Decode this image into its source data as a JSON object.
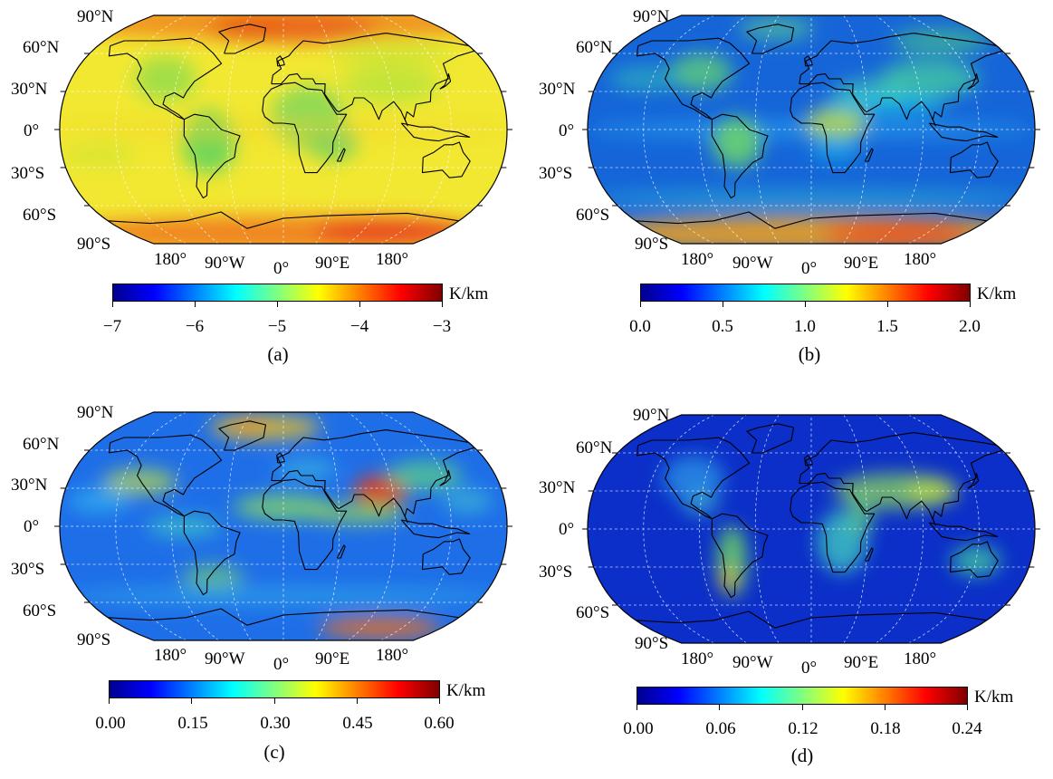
{
  "figure": {
    "panels": [
      {
        "id": "a",
        "label": "(a)",
        "lat_labels": [
          "90°N",
          "60°N",
          "30°N",
          "0°",
          "30°S",
          "60°S",
          "90°S"
        ],
        "lon_labels": [
          "180°",
          "90°W",
          "0°",
          "90°E",
          "180°"
        ],
        "colorbar": {
          "unit": "K/km",
          "min": -7,
          "max": -3,
          "ticks": [
            "−7",
            "−6",
            "−5",
            "−4",
            "−3"
          ],
          "colormap": "jet"
        },
        "background_color": "#f2e832"
      },
      {
        "id": "b",
        "label": "(b)",
        "lat_labels": [
          "90°N",
          "60°N",
          "30°N",
          "0°",
          "30°S",
          "60°S",
          "90°S"
        ],
        "lon_labels": [
          "180°",
          "90°W",
          "0°",
          "90°E",
          "180°"
        ],
        "colorbar": {
          "unit": "K/km",
          "min": 0.0,
          "max": 2.0,
          "ticks": [
            "0.0",
            "0.5",
            "1.0",
            "1.5",
            "2.0"
          ],
          "colormap": "jet"
        },
        "background_color": "#1565d8"
      },
      {
        "id": "c",
        "label": "(c)",
        "lat_labels": [
          "90°N",
          "60°N",
          "30°N",
          "0°",
          "30°S",
          "60°S",
          "90°S"
        ],
        "lon_labels": [
          "180°",
          "90°W",
          "0°",
          "90°E",
          "180°"
        ],
        "colorbar": {
          "unit": "K/km",
          "min": 0.0,
          "max": 0.6,
          "ticks": [
            "0.00",
            "0.15",
            "0.30",
            "0.45",
            "0.60"
          ],
          "colormap": "jet"
        },
        "background_color": "#1e6ee8"
      },
      {
        "id": "d",
        "label": "(d)",
        "lat_labels": [
          "90°N",
          "60°N",
          "30°N",
          "0°",
          "30°S",
          "60°S",
          "90°S"
        ],
        "lon_labels": [
          "180°",
          "90°W",
          "0°",
          "90°E",
          "180°"
        ],
        "colorbar": {
          "unit": "K/km",
          "min": 0.0,
          "max": 0.24,
          "ticks": [
            "0.00",
            "0.06",
            "0.12",
            "0.18",
            "0.24"
          ],
          "colormap": "jet"
        },
        "background_color": "#0b2fc8"
      }
    ],
    "colormap_stops": [
      "#00008f",
      "#0000ff",
      "#0080ff",
      "#00ffff",
      "#80ff80",
      "#ffff00",
      "#ff8000",
      "#ff0000",
      "#800000"
    ]
  }
}
